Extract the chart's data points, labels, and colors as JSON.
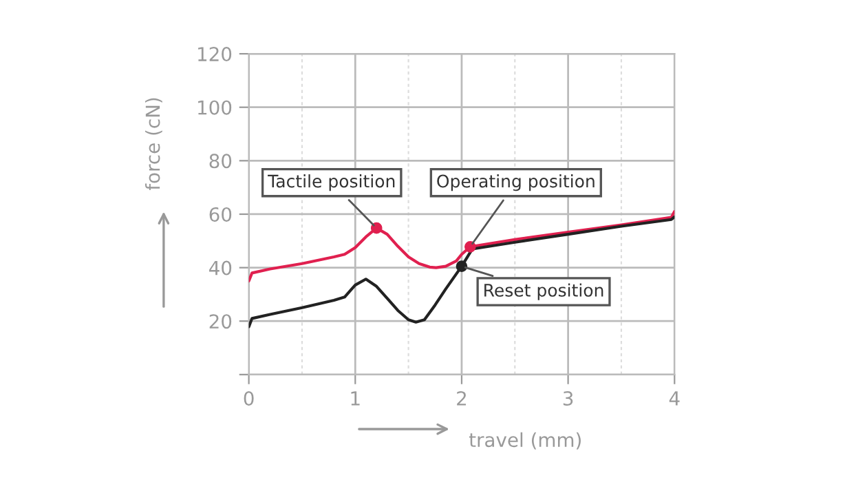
{
  "chart_data": {
    "type": "line",
    "xlabel": "travel (mm)",
    "ylabel": "force (cN)",
    "xlim": [
      0,
      4
    ],
    "xticks": [
      0,
      1,
      2,
      3,
      4
    ],
    "ylim": [
      0,
      120
    ],
    "yticks": [
      {
        "value": 0,
        "label": null
      },
      20,
      40,
      60,
      80,
      100,
      120
    ],
    "grid": true,
    "series": [
      {
        "color": "#e0204f",
        "x": [
          0,
          0.03,
          0.2,
          0.5,
          0.8,
          0.9,
          1.0,
          1.1,
          1.2,
          1.3,
          1.4,
          1.5,
          1.6,
          1.7,
          1.76,
          1.85,
          1.95,
          2.0,
          2.08,
          2.5,
          3,
          3.5,
          3.97,
          4
        ],
        "values": [
          35,
          38,
          39.5,
          41.5,
          44,
          45,
          47.5,
          51.5,
          54.8,
          52.5,
          48,
          44,
          41.5,
          40.2,
          40,
          40.5,
          42.5,
          45,
          47.8,
          50.5,
          53.3,
          56,
          58.8,
          61
        ]
      },
      {
        "color": "#222222",
        "x": [
          0,
          0.03,
          0.2,
          0.5,
          0.8,
          0.9,
          1.0,
          1.1,
          1.2,
          1.3,
          1.4,
          1.5,
          1.57,
          1.65,
          1.75,
          1.85,
          2.0,
          2.1,
          2.5,
          3,
          3.5,
          3.97,
          4
        ],
        "values": [
          17.9,
          21,
          22.5,
          25,
          27.8,
          29,
          33.5,
          35.7,
          33,
          28.5,
          24,
          20.5,
          19.6,
          20.5,
          26,
          32,
          40.5,
          47,
          49.5,
          52.5,
          55.5,
          58,
          59
        ]
      }
    ],
    "annotations": [
      {
        "text": "Tactile position",
        "x": 1.2,
        "y": 54.8
      },
      {
        "text": "Operating position",
        "x": 2.08,
        "y": 47.8
      },
      {
        "text": "Reset position",
        "x": 2.0,
        "y": 40.5
      }
    ]
  }
}
